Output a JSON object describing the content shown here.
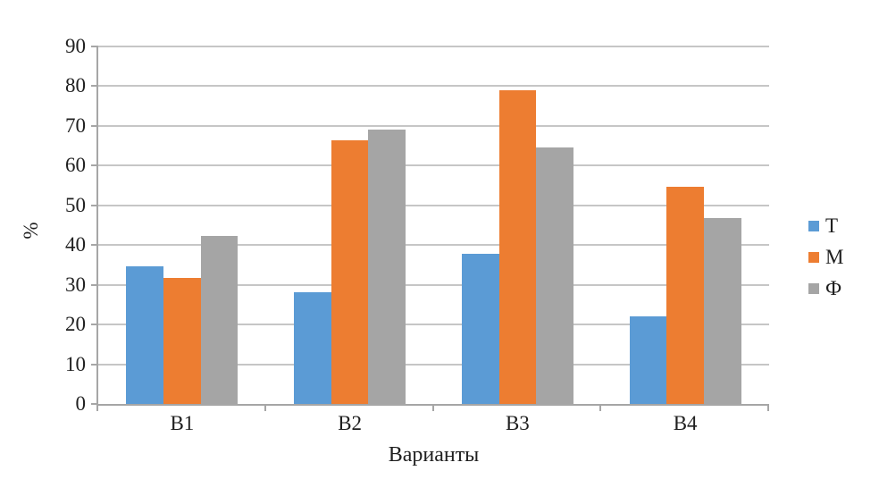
{
  "chart_data": {
    "type": "bar",
    "title": "",
    "xlabel": "Варианты",
    "ylabel": "%",
    "categories": [
      "В1",
      "В2",
      "В3",
      "В4"
    ],
    "series": [
      {
        "name": "Т",
        "color": "#5B9BD5",
        "values": [
          34.7,
          28.2,
          37.7,
          22.1
        ]
      },
      {
        "name": "М",
        "color": "#ED7D31",
        "values": [
          31.7,
          66.4,
          78.9,
          54.6
        ]
      },
      {
        "name": "Ф",
        "color": "#A5A5A5",
        "values": [
          42.2,
          69.0,
          64.5,
          46.9
        ]
      }
    ],
    "ylim": [
      0,
      90
    ],
    "ytick_step": 10,
    "yticks": [
      "0",
      "10",
      "20",
      "30",
      "40",
      "50",
      "60",
      "70",
      "80",
      "90"
    ],
    "grid": true,
    "legend_position": "right",
    "colors": {
      "gridline": "#C6C6C6",
      "axis": "#A6A6A6",
      "label_text": "#1F1F1F",
      "background": "#FFFFFF"
    }
  }
}
